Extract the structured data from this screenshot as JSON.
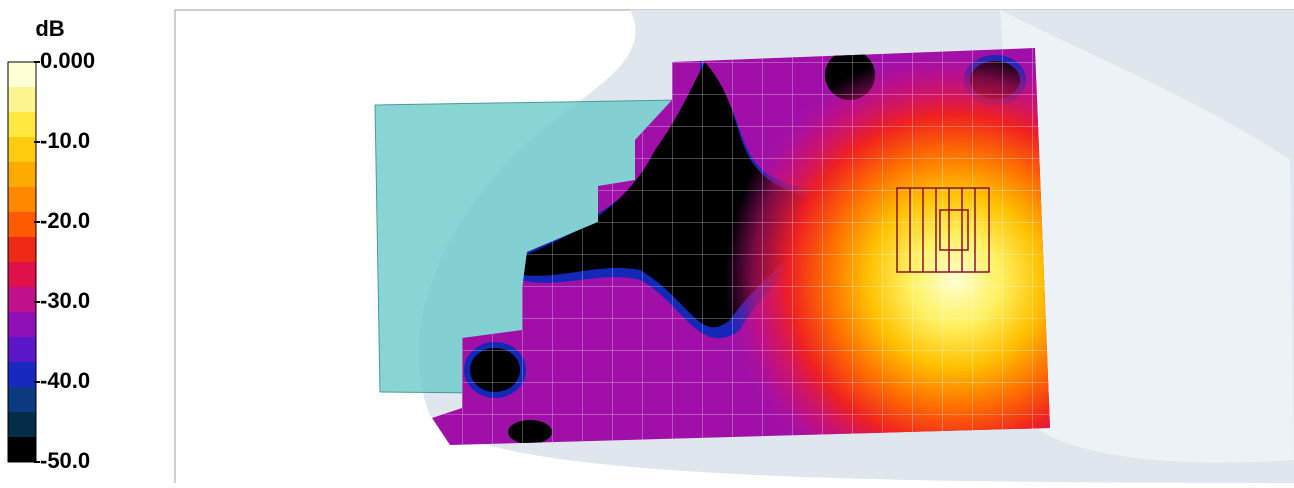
{
  "legend": {
    "title": "dB",
    "range": [
      -50,
      0
    ],
    "ticks": [
      {
        "value": 0,
        "label": "0.000"
      },
      {
        "value": -10,
        "label": "-10.0"
      },
      {
        "value": -20,
        "label": "-20.0"
      },
      {
        "value": -30,
        "label": "-30.0"
      },
      {
        "value": -40,
        "label": "-40.0"
      },
      {
        "value": -50,
        "label": "-50.0"
      }
    ],
    "colors": [
      "#ffffd8",
      "#fff590",
      "#ffe840",
      "#ffcc10",
      "#ffaa00",
      "#ff8800",
      "#ff5a00",
      "#f02818",
      "#e0104a",
      "#c0108a",
      "#9010b8",
      "#5a18c8",
      "#1828c0",
      "#0c3a80",
      "#042e48",
      "#000000"
    ]
  }
}
